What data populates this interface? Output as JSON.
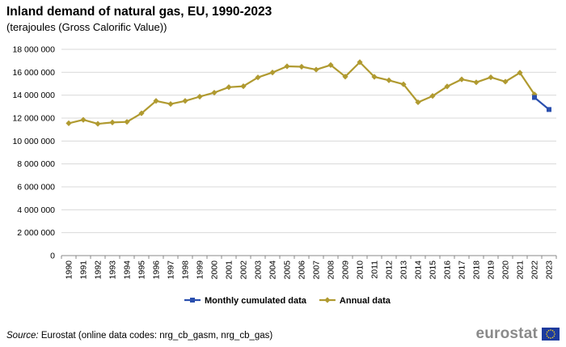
{
  "title": "Inland demand of natural gas, EU, 1990-2023",
  "subtitle": "(terajoules (Gross Calorific Value))",
  "source": {
    "label": "Source:",
    "text": " Eurostat (online data codes: nrg_cb_gasm, nrg_cb_gas)"
  },
  "logo": {
    "text": "eurostat",
    "icon": "eu-flag-icon"
  },
  "colors": {
    "annual": "#b09a30",
    "monthly": "#2a4fae",
    "grid": "#d9d9d9",
    "axis": "#888888"
  },
  "chart_data": {
    "type": "line",
    "title": "Inland demand of natural gas, EU, 1990-2023",
    "subtitle": "(terajoules (Gross Calorific Value))",
    "xlabel": "",
    "ylabel": "",
    "ylim": [
      0,
      18000000
    ],
    "yticks": [
      0,
      2000000,
      4000000,
      6000000,
      8000000,
      10000000,
      12000000,
      14000000,
      16000000,
      18000000
    ],
    "ytick_labels": [
      "0",
      "2 000 000",
      "4 000 000",
      "6 000 000",
      "8 000 000",
      "10 000 000",
      "12 000 000",
      "14 000 000",
      "16 000 000",
      "18 000 000"
    ],
    "grid": true,
    "legend_position": "bottom-center",
    "categories": [
      "1990",
      "1991",
      "1992",
      "1993",
      "1994",
      "1995",
      "1996",
      "1997",
      "1998",
      "1999",
      "2000",
      "2001",
      "2002",
      "2003",
      "2004",
      "2005",
      "2006",
      "2007",
      "2008",
      "2009",
      "2010",
      "2011",
      "2012",
      "2013",
      "2014",
      "2015",
      "2016",
      "2017",
      "2018",
      "2019",
      "2020",
      "2021",
      "2022",
      "2023"
    ],
    "series": [
      {
        "name": "Monthly cumulated data",
        "color": "#2a4fae",
        "marker": "square",
        "x": [
          "2022",
          "2023"
        ],
        "values": [
          13800000,
          12750000
        ]
      },
      {
        "name": "Annual data",
        "color": "#b09a30",
        "marker": "diamond",
        "x": [
          "1990",
          "1991",
          "1992",
          "1993",
          "1994",
          "1995",
          "1996",
          "1997",
          "1998",
          "1999",
          "2000",
          "2001",
          "2002",
          "2003",
          "2004",
          "2005",
          "2006",
          "2007",
          "2008",
          "2009",
          "2010",
          "2011",
          "2012",
          "2013",
          "2014",
          "2015",
          "2016",
          "2017",
          "2018",
          "2019",
          "2020",
          "2021",
          "2022"
        ],
        "values": [
          11550000,
          11850000,
          11500000,
          11620000,
          11670000,
          12420000,
          13500000,
          13230000,
          13500000,
          13870000,
          14220000,
          14700000,
          14780000,
          15550000,
          15980000,
          16520000,
          16480000,
          16230000,
          16630000,
          15620000,
          16880000,
          15600000,
          15300000,
          14950000,
          13380000,
          13930000,
          14760000,
          15380000,
          15120000,
          15560000,
          15180000,
          15960000,
          14070000
        ]
      }
    ]
  }
}
